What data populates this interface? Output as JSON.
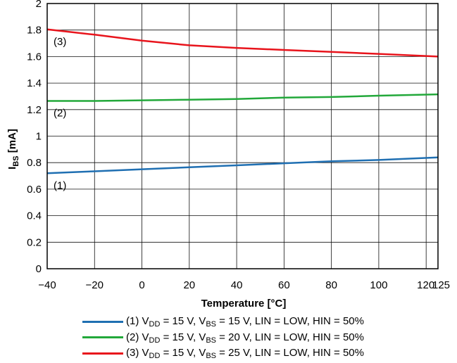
{
  "chart_data": {
    "type": "line",
    "xlabel": "Temperature [°C]",
    "ylabel": "I_BS [mA]",
    "ylabel_main": "I",
    "ylabel_sub": "BS",
    "ylabel_unit": " [mA]",
    "xlim": [
      -40,
      125
    ],
    "ylim": [
      0,
      2
    ],
    "xticks": [
      -40,
      -20,
      0,
      20,
      40,
      60,
      80,
      100,
      120,
      125
    ],
    "xtick_labels": [
      "−40",
      "−20",
      "0",
      "20",
      "40",
      "60",
      "80",
      "100",
      "120",
      "125"
    ],
    "yticks": [
      0,
      0.2,
      0.4,
      0.6,
      0.8,
      1,
      1.2,
      1.4,
      1.6,
      1.8,
      2
    ],
    "ytick_labels": [
      "0",
      "0.2",
      "0.4",
      "0.6",
      "0.8",
      "1",
      "1.2",
      "1.4",
      "1.6",
      "1.8",
      "2"
    ],
    "grid": true,
    "legend_position": "bottom",
    "x": [
      -40,
      -20,
      0,
      20,
      40,
      60,
      80,
      100,
      125
    ],
    "series": [
      {
        "name": "(1) V_DD = 15 V, V_BS = 15 V, LIN = LOW, HIN = 50%",
        "label": "(1)",
        "color": "#1f6fb2",
        "values": [
          0.72,
          0.735,
          0.75,
          0.765,
          0.78,
          0.795,
          0.81,
          0.82,
          0.84
        ],
        "legend_parts": [
          "(1) V",
          "DD",
          " = 15 V, V",
          "BS",
          " = 15 V, LIN = LOW, HIN = 50%"
        ]
      },
      {
        "name": "(2) V_DD = 15 V, V_BS = 20 V, LIN = LOW, HIN = 50%",
        "label": "(2)",
        "color": "#22a83a",
        "values": [
          1.265,
          1.265,
          1.27,
          1.275,
          1.28,
          1.29,
          1.295,
          1.305,
          1.315
        ],
        "legend_parts": [
          "(2) V",
          "DD",
          " = 15 V, V",
          "BS",
          " = 20 V, LIN = LOW, HIN = 50%"
        ]
      },
      {
        "name": "(3) V_DD = 15 V, V_BS = 25 V, LIN = LOW, HIN = 50%",
        "label": "(3)",
        "color": "#e8141c",
        "values": [
          1.805,
          1.765,
          1.72,
          1.685,
          1.665,
          1.65,
          1.635,
          1.62,
          1.6
        ],
        "legend_parts": [
          "(3) V",
          "DD",
          " = 15 V, V",
          "BS",
          " = 25 V, LIN = LOW, HIN = 50%"
        ]
      }
    ]
  }
}
